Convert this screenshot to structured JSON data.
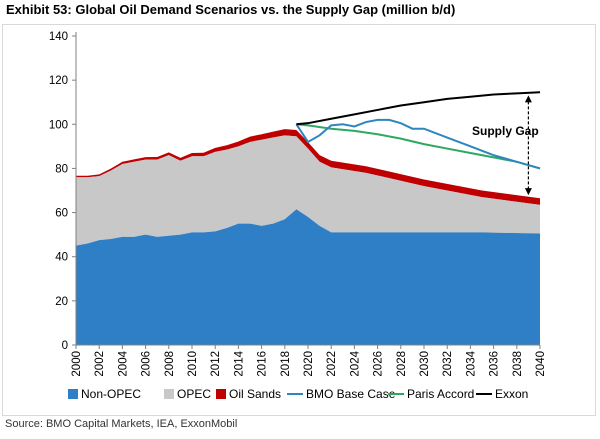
{
  "title": "Exhibit 53: Global Oil Demand Scenarios vs. the Supply Gap (million b/d)",
  "source": "Source: BMO Capital Markets, IEA, ExxonMobil",
  "annotation": "Supply Gap",
  "colors": {
    "non_opec": "#2e7fc6",
    "opec": "#c8c8c8",
    "oil_sands": "#c00000",
    "bmo": "#2e86c1",
    "paris": "#2ea860",
    "exxon": "#000000",
    "axis": "#808080"
  },
  "chart_data": {
    "type": "area",
    "ylim": [
      0,
      140
    ],
    "y_ticks": [
      0,
      20,
      40,
      60,
      80,
      100,
      120,
      140
    ],
    "xlim": [
      2000,
      2040
    ],
    "x_ticks": [
      "2000",
      "2002",
      "2004",
      "2006",
      "2008",
      "2010",
      "2012",
      "2014",
      "2016",
      "2018",
      "2020",
      "2022",
      "2024",
      "2026",
      "2028",
      "2030",
      "2032",
      "2034",
      "2036",
      "2038",
      "2040"
    ],
    "series": [
      {
        "name": "Non-OPEC",
        "kind": "area",
        "x": [
          2000,
          2001,
          2002,
          2003,
          2004,
          2005,
          2006,
          2007,
          2008,
          2009,
          2010,
          2011,
          2012,
          2013,
          2014,
          2015,
          2016,
          2017,
          2018,
          2019,
          2020,
          2021,
          2022,
          2025,
          2030,
          2035,
          2040
        ],
        "values": [
          45,
          46,
          47.5,
          48,
          49,
          49,
          50,
          49,
          49.5,
          50,
          51,
          51,
          51.5,
          53,
          55,
          55,
          54,
          55,
          57,
          61.5,
          58,
          54,
          51,
          51,
          51,
          51,
          50.5
        ]
      },
      {
        "name": "OPEC",
        "kind": "area",
        "x": [
          2000,
          2001,
          2002,
          2003,
          2004,
          2005,
          2006,
          2007,
          2008,
          2009,
          2010,
          2011,
          2012,
          2013,
          2014,
          2015,
          2016,
          2017,
          2018,
          2019,
          2020,
          2021,
          2022,
          2025,
          2030,
          2035,
          2040
        ],
        "values": [
          31,
          30,
          29,
          31,
          33,
          34,
          34,
          35,
          36.5,
          33.5,
          34.5,
          34.5,
          36,
          35.5,
          35,
          37,
          39,
          39,
          38,
          33,
          31,
          29,
          29.5,
          27,
          21,
          16,
          13
        ]
      },
      {
        "name": "Oil Sands",
        "kind": "area",
        "x": [
          2000,
          2001,
          2002,
          2003,
          2004,
          2005,
          2006,
          2007,
          2008,
          2009,
          2010,
          2011,
          2012,
          2013,
          2014,
          2015,
          2016,
          2017,
          2018,
          2019,
          2020,
          2021,
          2022,
          2025,
          2030,
          2035,
          2040
        ],
        "values": [
          0.7,
          0.7,
          0.8,
          0.9,
          1,
          1.1,
          1.1,
          1.2,
          1.3,
          1.3,
          1.5,
          1.6,
          1.8,
          2,
          2.2,
          2.4,
          2.5,
          2.7,
          2.8,
          2.9,
          2.9,
          3,
          3,
          3,
          3,
          3,
          3
        ]
      },
      {
        "name": "BMO Base Case",
        "kind": "line",
        "x": [
          2019,
          2020,
          2021,
          2022,
          2023,
          2024,
          2025,
          2026,
          2027,
          2028,
          2029,
          2030,
          2032,
          2034,
          2036,
          2038,
          2040
        ],
        "values": [
          100,
          92,
          95,
          99.5,
          100,
          99,
          101,
          102,
          102,
          100.5,
          98,
          98,
          94,
          90,
          86,
          83,
          80
        ]
      },
      {
        "name": "Paris Accord",
        "kind": "line",
        "x": [
          2019,
          2020,
          2022,
          2024,
          2026,
          2028,
          2030,
          2032,
          2034,
          2036,
          2038,
          2040
        ],
        "values": [
          100,
          99.5,
          98,
          97,
          95.5,
          93.5,
          91,
          89,
          87,
          85,
          83,
          80
        ]
      },
      {
        "name": "Exxon",
        "kind": "line",
        "x": [
          2019,
          2020,
          2022,
          2024,
          2026,
          2028,
          2030,
          2032,
          2034,
          2036,
          2038,
          2040
        ],
        "values": [
          100,
          100.5,
          102.5,
          104.5,
          106.5,
          108.5,
          110,
          111.5,
          112.5,
          113.5,
          114,
          114.5
        ]
      }
    ],
    "annotation_arrow": {
      "x": 2039,
      "from": 67,
      "to": 114
    }
  }
}
